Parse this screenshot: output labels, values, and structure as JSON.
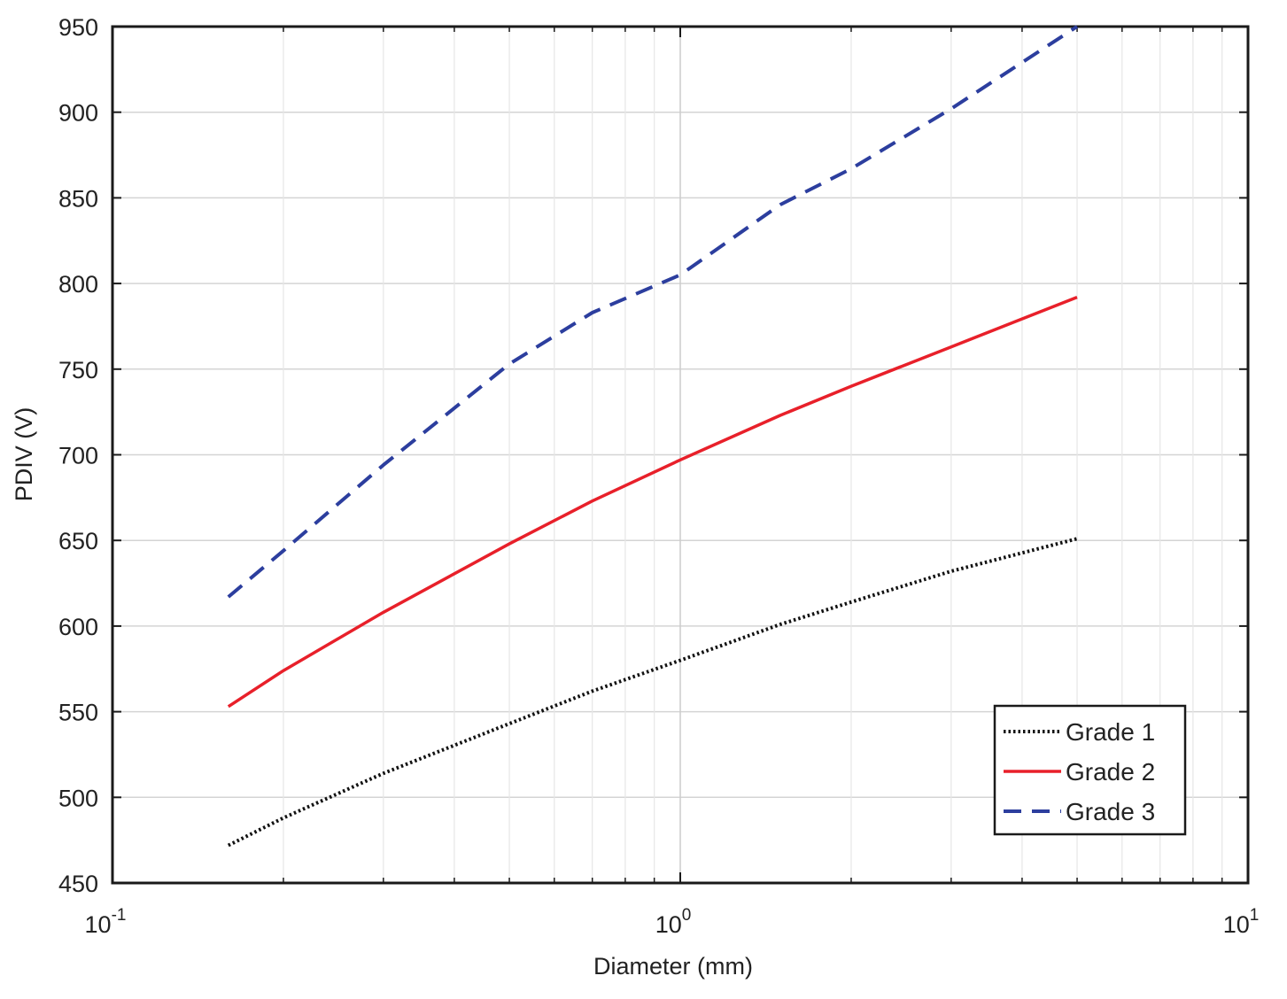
{
  "chart_data": {
    "type": "line",
    "title": "",
    "xlabel": "Diameter (mm)",
    "ylabel": "PDIV (V)",
    "x_scale": "log",
    "xlim": [
      0.1,
      10
    ],
    "ylim": [
      450,
      950
    ],
    "grid": true,
    "legend_position": "bottom-right",
    "x_ticks": [
      {
        "value": 0.1,
        "base": "10",
        "exp": "-1"
      },
      {
        "value": 1,
        "base": "10",
        "exp": "0"
      },
      {
        "value": 10,
        "base": "10",
        "exp": "1"
      }
    ],
    "y_ticks": [
      450,
      500,
      550,
      600,
      650,
      700,
      750,
      800,
      850,
      900,
      950
    ],
    "series": [
      {
        "name": "Grade 1",
        "color": "#111111",
        "style": "dotted",
        "x": [
          0.16,
          0.2,
          0.3,
          0.5,
          0.7,
          1,
          1.5,
          2,
          3,
          5
        ],
        "y": [
          472,
          488,
          514,
          543,
          562,
          580,
          601,
          614,
          632,
          651
        ]
      },
      {
        "name": "Grade 2",
        "color": "#e8202a",
        "style": "solid",
        "x": [
          0.16,
          0.2,
          0.3,
          0.5,
          0.7,
          1,
          1.5,
          2,
          3,
          5
        ],
        "y": [
          553,
          574,
          608,
          648,
          673,
          697,
          723,
          740,
          763,
          792
        ]
      },
      {
        "name": "Grade 3",
        "color": "#2c3e9e",
        "style": "dashed",
        "x": [
          0.16,
          0.2,
          0.3,
          0.5,
          0.7,
          1,
          1.5,
          2,
          3,
          5
        ],
        "y": [
          617,
          644,
          694,
          753,
          783,
          805,
          846,
          867,
          902,
          950
        ]
      }
    ]
  }
}
